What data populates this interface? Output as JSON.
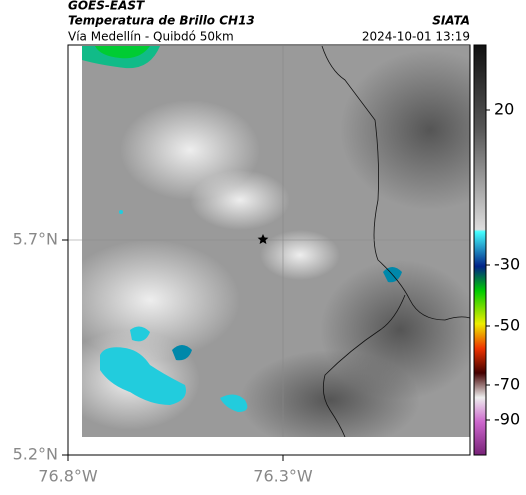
{
  "header": {
    "title": "GOES-EAST",
    "subtitle": "Temperatura de Brillo CH13",
    "region": "Vía Medellín - Quibdó 50km",
    "source": "SIATA",
    "timestamp": "2024-10-01 13:19"
  },
  "map": {
    "lat_labels": [
      "5.7°N",
      "5.2°N"
    ],
    "lon_labels": [
      "76.8°W",
      "76.3°W"
    ]
  },
  "colorbar": {
    "ticks": [
      20,
      -30,
      -50,
      -70,
      -90
    ]
  }
}
